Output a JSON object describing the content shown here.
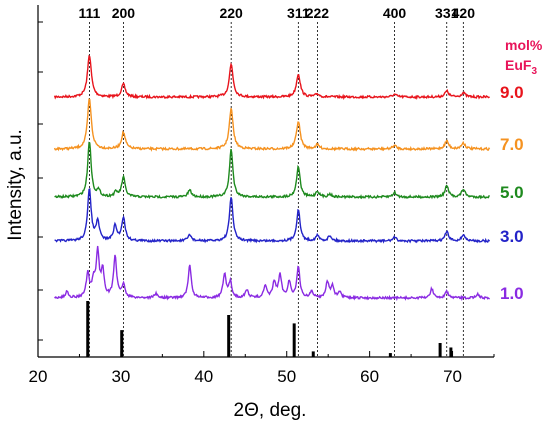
{
  "chart_data": {
    "type": "line",
    "xlabel": "2Θ, deg.",
    "ylabel": "Intensity, a.u.",
    "xlim": [
      20,
      75
    ],
    "x_ticks": [
      "20",
      "30",
      "40",
      "50",
      "60",
      "70"
    ],
    "grid": false,
    "reflections": [
      {
        "label": "111",
        "x": 26.2
      },
      {
        "label": "200",
        "x": 30.3
      },
      {
        "label": "220",
        "x": 43.3
      },
      {
        "label": "311",
        "x": 51.4
      },
      {
        "label": "222",
        "x": 53.7
      },
      {
        "label": "400",
        "x": 63.0
      },
      {
        "label": "331",
        "x": 69.3
      },
      {
        "label": "420",
        "x": 71.3
      }
    ],
    "legend_title_line1": "mol%",
    "legend_title_line2": "EuF",
    "legend_title_sub": "3",
    "series": [
      {
        "name": "9.0",
        "color": "#e8141c",
        "peaks": [
          [
            26.2,
            1.0
          ],
          [
            30.3,
            0.3
          ],
          [
            43.3,
            0.78
          ],
          [
            51.4,
            0.55
          ],
          [
            53.7,
            0.07
          ],
          [
            63.0,
            0.06
          ],
          [
            69.3,
            0.14
          ],
          [
            71.3,
            0.1
          ]
        ]
      },
      {
        "name": "7.0",
        "color": "#f59220",
        "peaks": [
          [
            26.2,
            1.0
          ],
          [
            30.3,
            0.33
          ],
          [
            43.3,
            0.8
          ],
          [
            51.4,
            0.55
          ],
          [
            53.7,
            0.08
          ],
          [
            63.0,
            0.07
          ],
          [
            69.3,
            0.16
          ],
          [
            71.3,
            0.12
          ]
        ]
      },
      {
        "name": "5.0",
        "color": "#1e8a1e",
        "peaks": [
          [
            26.2,
            1.0
          ],
          [
            27.3,
            0.1
          ],
          [
            29.4,
            0.08
          ],
          [
            30.3,
            0.35
          ],
          [
            38.3,
            0.12
          ],
          [
            43.3,
            0.85
          ],
          [
            51.4,
            0.55
          ],
          [
            53.7,
            0.1
          ],
          [
            55.2,
            0.05
          ],
          [
            63.0,
            0.08
          ],
          [
            69.3,
            0.2
          ],
          [
            71.3,
            0.14
          ]
        ]
      },
      {
        "name": "3.0",
        "color": "#2323c8",
        "peaks": [
          [
            26.2,
            1.0
          ],
          [
            27.2,
            0.35
          ],
          [
            29.3,
            0.28
          ],
          [
            30.3,
            0.45
          ],
          [
            38.3,
            0.12
          ],
          [
            43.3,
            0.85
          ],
          [
            51.4,
            0.6
          ],
          [
            53.7,
            0.1
          ],
          [
            55.2,
            0.1
          ],
          [
            63.0,
            0.07
          ],
          [
            69.3,
            0.18
          ],
          [
            71.3,
            0.12
          ]
        ]
      },
      {
        "name": "1.0",
        "color": "#8a2be2",
        "peaks": [
          [
            23.5,
            0.12
          ],
          [
            26.0,
            0.45
          ],
          [
            26.7,
            0.3
          ],
          [
            27.2,
            0.85
          ],
          [
            27.8,
            0.5
          ],
          [
            29.3,
            0.8
          ],
          [
            30.3,
            0.25
          ],
          [
            34.2,
            0.08
          ],
          [
            38.3,
            0.62
          ],
          [
            42.5,
            0.45
          ],
          [
            43.2,
            0.3
          ],
          [
            45.2,
            0.15
          ],
          [
            47.4,
            0.22
          ],
          [
            48.5,
            0.3
          ],
          [
            49.2,
            0.42
          ],
          [
            50.3,
            0.3
          ],
          [
            51.4,
            0.58
          ],
          [
            53.0,
            0.12
          ],
          [
            54.9,
            0.3
          ],
          [
            55.5,
            0.22
          ],
          [
            56.4,
            0.1
          ],
          [
            67.5,
            0.18
          ],
          [
            69.3,
            0.12
          ],
          [
            73.0,
            0.08
          ]
        ]
      }
    ],
    "reference_bars": [
      {
        "x": 26.0,
        "h": 1.0
      },
      {
        "x": 30.1,
        "h": 0.48
      },
      {
        "x": 43.0,
        "h": 0.75
      },
      {
        "x": 50.9,
        "h": 0.6
      },
      {
        "x": 53.2,
        "h": 0.1
      },
      {
        "x": 62.5,
        "h": 0.07
      },
      {
        "x": 68.5,
        "h": 0.25
      },
      {
        "x": 69.8,
        "h": 0.17
      }
    ]
  }
}
